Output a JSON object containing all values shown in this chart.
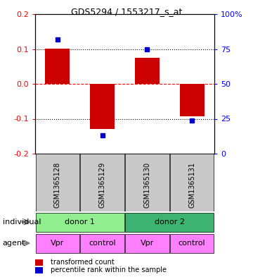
{
  "title": "GDS5294 / 1553217_s_at",
  "samples": [
    "GSM1365128",
    "GSM1365129",
    "GSM1365130",
    "GSM1365131"
  ],
  "red_values": [
    0.102,
    -0.13,
    0.075,
    -0.093
  ],
  "blue_values": [
    0.128,
    -0.148,
    0.1,
    -0.105
  ],
  "ylim": [
    -0.2,
    0.2
  ],
  "yticks_left": [
    -0.2,
    -0.1,
    0.0,
    0.1,
    0.2
  ],
  "individual_labels": [
    "donor 1",
    "donor 2"
  ],
  "agent_labels": [
    "Vpr",
    "control",
    "Vpr",
    "control"
  ],
  "individual_color_1": "#90EE90",
  "individual_color_2": "#3CB371",
  "agent_color": "#FF80FF",
  "sample_bg_color": "#C8C8C8",
  "red_bar_color": "#CC0000",
  "blue_dot_color": "#0000CC",
  "legend_red_label": "transformed count",
  "legend_blue_label": "percentile rank within the sample"
}
